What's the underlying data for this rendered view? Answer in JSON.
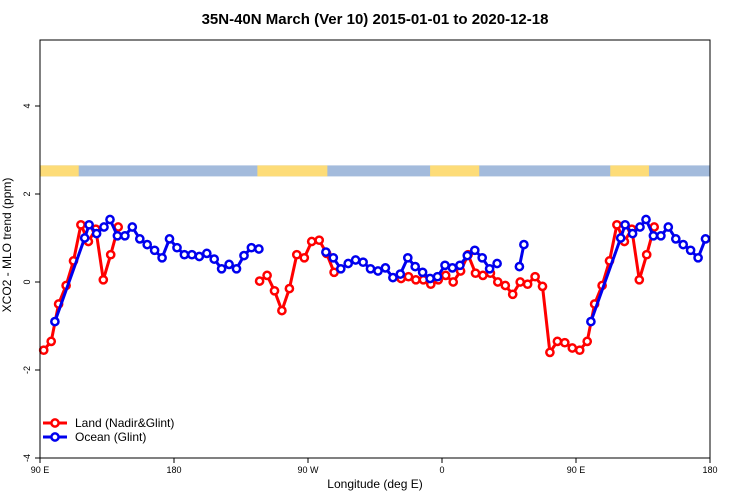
{
  "chart_data": {
    "type": "line",
    "title": "35N-40N March (Ver 10)   2015-01-01 to 2020-12-18",
    "xlabel": "Longitude (deg E)",
    "ylabel": "XCO2 - MLO trend (ppm)",
    "xlim": [
      90,
      540
    ],
    "ylim": [
      -4,
      5.5
    ],
    "x_ticks": [
      {
        "value": 90,
        "label": "90 E"
      },
      {
        "value": 180,
        "label": "180"
      },
      {
        "value": 270,
        "label": "90 W"
      },
      {
        "value": 360,
        "label": "0"
      },
      {
        "value": 450,
        "label": "90 E"
      },
      {
        "value": 540,
        "label": "180"
      }
    ],
    "y_ticks": [
      {
        "value": -4,
        "label": "-4"
      },
      {
        "value": -2,
        "label": "-2"
      },
      {
        "value": 0,
        "label": "0"
      },
      {
        "value": 2,
        "label": "2"
      },
      {
        "value": 4,
        "label": "4"
      }
    ],
    "grid": false,
    "legend_position": "bottom-left",
    "land_strip": {
      "y_range": [
        2.4,
        2.65
      ],
      "ocean_color": "#a3bbdc",
      "land_color": "#fddc78",
      "land_ranges": [
        [
          90,
          116
        ],
        [
          236,
          283
        ],
        [
          352,
          385
        ],
        [
          473,
          499
        ]
      ]
    },
    "series": [
      {
        "name": "Land (Nadir&Glint)",
        "color": "#ff0000",
        "segments": [
          [
            [
              92.5,
              -1.55
            ],
            [
              97.5,
              -1.35
            ],
            [
              102.5,
              -0.5
            ],
            [
              107.5,
              -0.08
            ],
            [
              112.5,
              0.48
            ],
            [
              117.5,
              1.3
            ],
            [
              122.5,
              0.92
            ],
            [
              127.5,
              1.2
            ],
            [
              132.5,
              0.05
            ],
            [
              137.5,
              0.62
            ],
            [
              142.5,
              1.25
            ]
          ],
          [
            [
              237.5,
              0.02
            ],
            [
              242.5,
              0.15
            ],
            [
              247.5,
              -0.2
            ],
            [
              252.5,
              -0.65
            ],
            [
              257.5,
              -0.15
            ],
            [
              262.5,
              0.62
            ],
            [
              267.5,
              0.55
            ],
            [
              272.5,
              0.92
            ],
            [
              277.5,
              0.95
            ],
            [
              282.5,
              0.65
            ],
            [
              287.5,
              0.22
            ]
          ],
          [
            [
              332.5,
              0.08
            ],
            [
              337.5,
              0.12
            ],
            [
              342.5,
              0.05
            ],
            [
              347.5,
              0.05
            ],
            [
              352.5,
              -0.05
            ],
            [
              357.5,
              0.05
            ],
            [
              362.5,
              0.15
            ],
            [
              367.5,
              0.0
            ],
            [
              372.5,
              0.25
            ],
            [
              377.5,
              0.62
            ],
            [
              382.5,
              0.2
            ],
            [
              387.5,
              0.15
            ],
            [
              392.5,
              0.2
            ],
            [
              397.5,
              0.0
            ],
            [
              402.5,
              -0.08
            ],
            [
              407.5,
              -0.28
            ],
            [
              412.5,
              0.0
            ],
            [
              417.5,
              -0.05
            ],
            [
              422.5,
              0.12
            ],
            [
              427.5,
              -0.1
            ],
            [
              432.5,
              -1.6
            ],
            [
              437.5,
              -1.35
            ],
            [
              442.5,
              -1.38
            ],
            [
              447.5,
              -1.5
            ],
            [
              452.5,
              -1.55
            ],
            [
              457.5,
              -1.35
            ],
            [
              462.5,
              -0.5
            ],
            [
              467.5,
              -0.08
            ],
            [
              472.5,
              0.48
            ],
            [
              477.5,
              1.3
            ],
            [
              482.5,
              0.92
            ],
            [
              487.5,
              1.2
            ],
            [
              492.5,
              0.05
            ],
            [
              497.5,
              0.62
            ],
            [
              502.5,
              1.25
            ]
          ]
        ]
      },
      {
        "name": "Ocean (Glint)",
        "color": "#0000ee",
        "segments": [
          [
            [
              100,
              -0.9
            ],
            [
              120,
              1.0
            ],
            [
              123,
              1.3
            ],
            [
              128,
              1.1
            ],
            [
              133,
              1.25
            ],
            [
              137,
              1.42
            ],
            [
              142,
              1.05
            ],
            [
              147,
              1.05
            ],
            [
              152,
              1.25
            ],
            [
              157,
              0.98
            ],
            [
              162,
              0.85
            ],
            [
              167,
              0.72
            ],
            [
              172,
              0.55
            ],
            [
              177,
              0.98
            ],
            [
              182,
              0.78
            ],
            [
              187,
              0.62
            ],
            [
              192,
              0.62
            ],
            [
              197,
              0.58
            ],
            [
              202,
              0.65
            ],
            [
              207,
              0.52
            ],
            [
              212,
              0.3
            ],
            [
              217,
              0.4
            ],
            [
              222,
              0.3
            ],
            [
              227,
              0.6
            ],
            [
              232,
              0.78
            ],
            [
              237,
              0.75
            ]
          ],
          [
            [
              282,
              0.68
            ],
            [
              287,
              0.55
            ],
            [
              292,
              0.3
            ],
            [
              297,
              0.42
            ],
            [
              302,
              0.5
            ],
            [
              307,
              0.45
            ],
            [
              312,
              0.3
            ],
            [
              317,
              0.25
            ],
            [
              322,
              0.32
            ],
            [
              327,
              0.1
            ],
            [
              332,
              0.18
            ],
            [
              337,
              0.55
            ],
            [
              342,
              0.35
            ],
            [
              347,
              0.22
            ],
            [
              352,
              0.08
            ],
            [
              357,
              0.12
            ],
            [
              362,
              0.38
            ],
            [
              367,
              0.32
            ],
            [
              372,
              0.38
            ],
            [
              377,
              0.6
            ],
            [
              382,
              0.72
            ],
            [
              387,
              0.55
            ],
            [
              392,
              0.3
            ],
            [
              397,
              0.42
            ]
          ],
          [
            [
              412,
              0.35
            ],
            [
              415,
              0.85
            ]
          ],
          [
            [
              460,
              -0.9
            ],
            [
              480,
              1.0
            ],
            [
              483,
              1.3
            ],
            [
              488,
              1.1
            ],
            [
              493,
              1.25
            ],
            [
              497,
              1.42
            ],
            [
              502,
              1.05
            ],
            [
              507,
              1.05
            ],
            [
              512,
              1.25
            ],
            [
              517,
              0.98
            ],
            [
              522,
              0.85
            ],
            [
              527,
              0.72
            ],
            [
              532,
              0.55
            ],
            [
              537,
              0.98
            ]
          ]
        ]
      }
    ]
  }
}
